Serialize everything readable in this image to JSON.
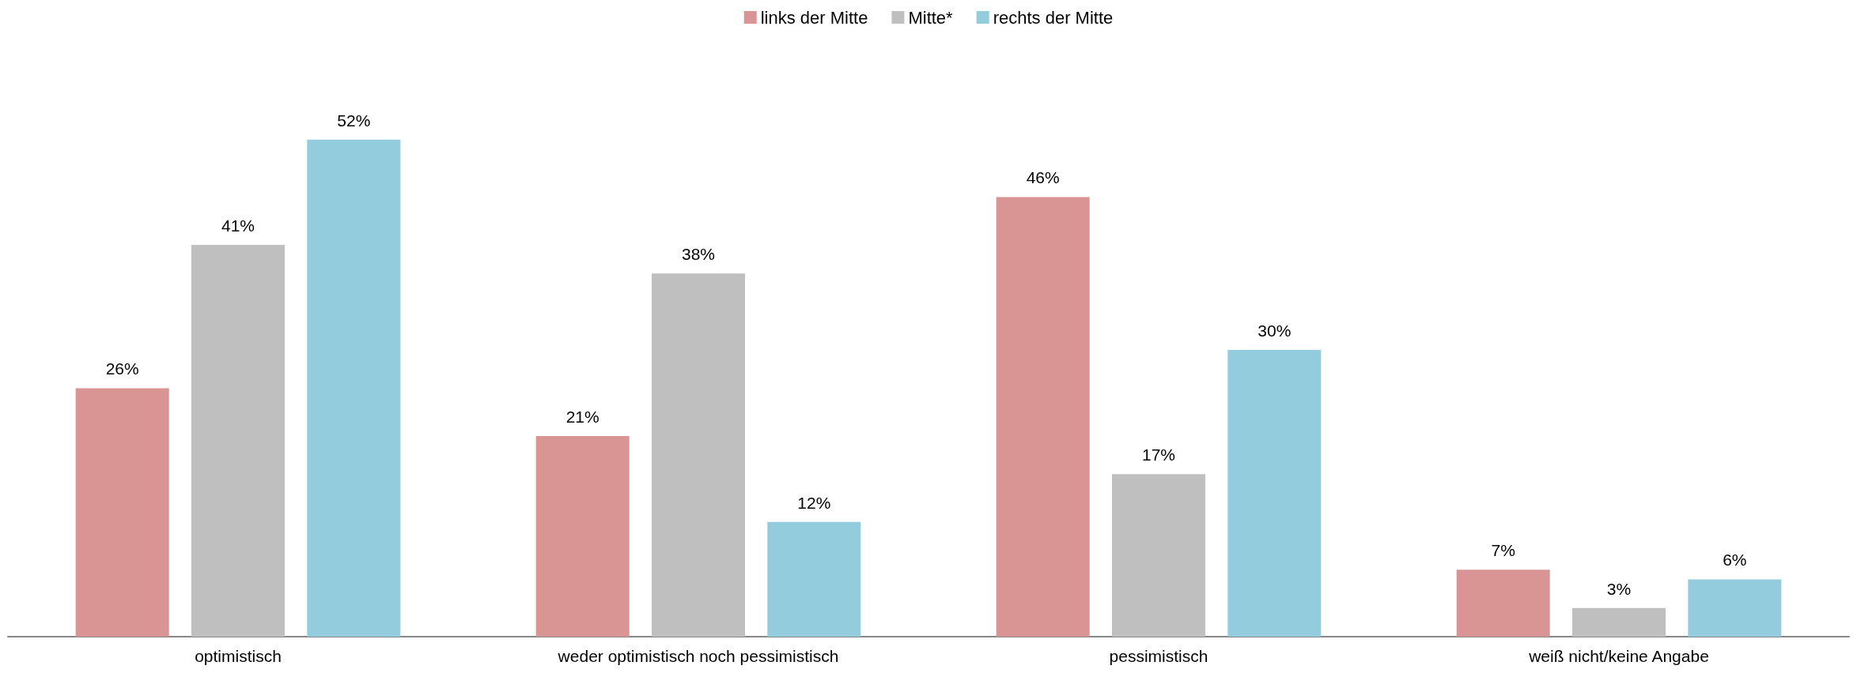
{
  "chart_data": {
    "type": "bar",
    "categories": [
      "optimistisch",
      "weder optimistisch noch pessimistisch",
      "pessimistisch",
      "weiß nicht/keine Angabe"
    ],
    "series": [
      {
        "name": "links der Mitte",
        "color": "#d99594",
        "values": [
          26,
          21,
          46,
          7
        ],
        "value_labels": [
          "26%",
          "21%",
          "46%",
          "7%"
        ]
      },
      {
        "name": "Mitte*",
        "color": "#bfbfbf",
        "values": [
          41,
          38,
          17,
          3
        ],
        "value_labels": [
          "41%",
          "38%",
          "17%",
          "3%"
        ]
      },
      {
        "name": "rechts der Mitte",
        "color": "#93cddd",
        "values": [
          52,
          12,
          30,
          6
        ],
        "value_labels": [
          "52%",
          "12%",
          "30%",
          "6%"
        ]
      }
    ],
    "legend": "top"
  }
}
